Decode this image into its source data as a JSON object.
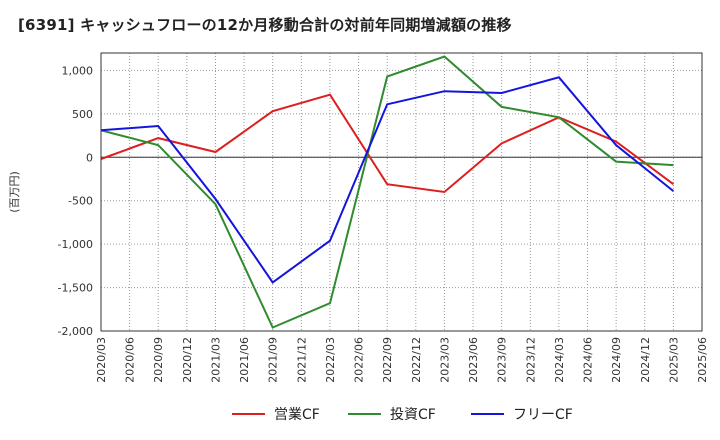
{
  "chart_data": {
    "type": "line",
    "title": "[6391]  キャッシュフローの12か月移動合計の対前年同期増減額の推移",
    "ylabel": "(百万円)",
    "xlabel": "",
    "ylim": [
      -2000,
      1200
    ],
    "yticks": [
      1000,
      500,
      0,
      -500,
      -1000,
      -1500,
      -2000
    ],
    "ytick_labels": [
      "1,000",
      "500",
      "0",
      "-500",
      "-1,000",
      "-1,500",
      "-2,000"
    ],
    "categories": [
      "2020/03",
      "2020/06",
      "2020/09",
      "2020/12",
      "2021/03",
      "2021/06",
      "2021/09",
      "2021/12",
      "2022/03",
      "2022/06",
      "2022/09",
      "2022/12",
      "2023/03",
      "2023/06",
      "2023/09",
      "2023/12",
      "2024/03",
      "2024/06",
      "2024/09",
      "2024/12",
      "2025/03",
      "2025/06"
    ],
    "grid": true,
    "legend_position": "bottom",
    "series": [
      {
        "name": "営業CF",
        "color": "#dd1f1f",
        "x": [
          "2020/03",
          "2020/09",
          "2021/03",
          "2021/09",
          "2022/03",
          "2022/09",
          "2023/03",
          "2023/09",
          "2024/03",
          "2024/09",
          "2025/03"
        ],
        "values": [
          -20,
          220,
          60,
          530,
          720,
          -310,
          -400,
          160,
          460,
          180,
          -310
        ]
      },
      {
        "name": "投資CF",
        "color": "#2e8b2e",
        "x": [
          "2020/03",
          "2020/09",
          "2021/03",
          "2021/09",
          "2022/03",
          "2022/09",
          "2023/03",
          "2023/09",
          "2024/03",
          "2024/09",
          "2025/03"
        ],
        "values": [
          310,
          140,
          -540,
          -1960,
          -1680,
          930,
          1160,
          580,
          460,
          -50,
          -90
        ]
      },
      {
        "name": "フリーCF",
        "color": "#1414dd",
        "x": [
          "2020/03",
          "2020/09",
          "2021/03",
          "2021/09",
          "2022/03",
          "2022/09",
          "2023/03",
          "2023/09",
          "2024/03",
          "2024/09",
          "2025/03"
        ],
        "values": [
          310,
          360,
          -480,
          -1440,
          -960,
          610,
          760,
          740,
          920,
          140,
          -390
        ]
      }
    ]
  }
}
